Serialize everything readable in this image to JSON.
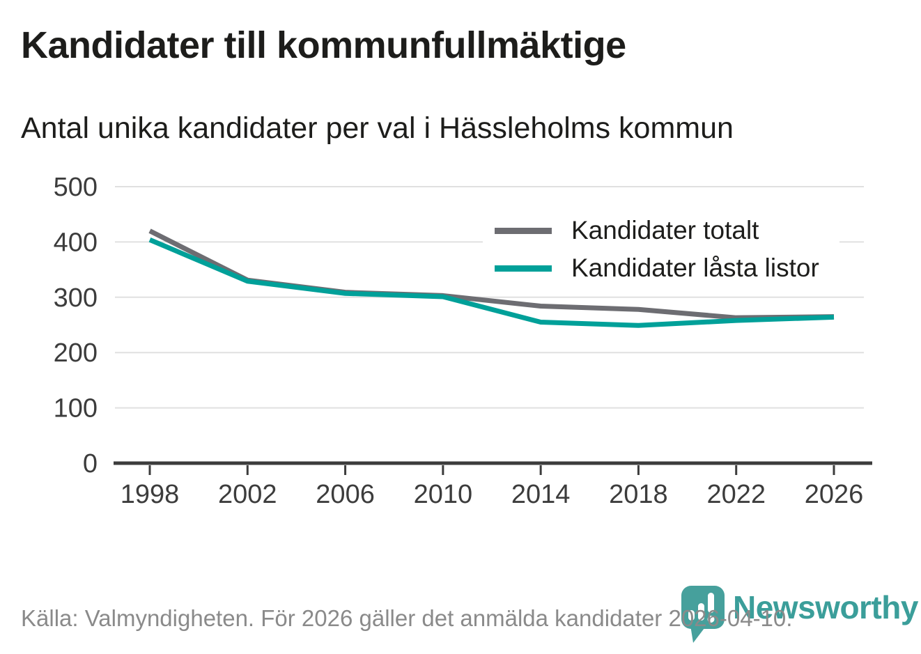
{
  "header": {
    "title": "Kandidater till kommunfullmäktige",
    "subtitle": "Antal unika kandidater per val i Hässleholms kommun"
  },
  "chart_data": {
    "type": "line",
    "x": [
      1998,
      2002,
      2006,
      2010,
      2014,
      2018,
      2022,
      2026
    ],
    "series": [
      {
        "name": "Kandidater totalt",
        "color": "#6d6d72",
        "values": [
          420,
          331,
          309,
          303,
          284,
          278,
          263,
          265
        ]
      },
      {
        "name": "Kandidater låsta listor",
        "color": "#00a099",
        "values": [
          404,
          329,
          307,
          301,
          255,
          249,
          258,
          264
        ]
      }
    ],
    "title": "Kandidater till kommunfullmäktige",
    "subtitle": "Antal unika kandidater per val i Hässleholms kommun",
    "xlabel": "",
    "ylabel": "",
    "ylim": [
      0,
      500
    ],
    "yticks": [
      0,
      100,
      200,
      300,
      400,
      500
    ],
    "grid": true,
    "legend_position": "top-right"
  },
  "footer": {
    "source": "Källa: Valmyndigheten. För 2026 gäller det anmälda kandidater 2026-04-10."
  },
  "branding": {
    "wordmark": "Newsworthy",
    "logo_icon": "bar-chart-speech-bubble-icon"
  },
  "colors": {
    "series_gray": "#6d6d72",
    "accent_teal": "#00a099",
    "grid": "#e0e0e0",
    "axis": "#3c3c3c",
    "text": "#1d1d1b",
    "muted_text": "#8a8a8a",
    "brand_teal": "#46a09c"
  }
}
